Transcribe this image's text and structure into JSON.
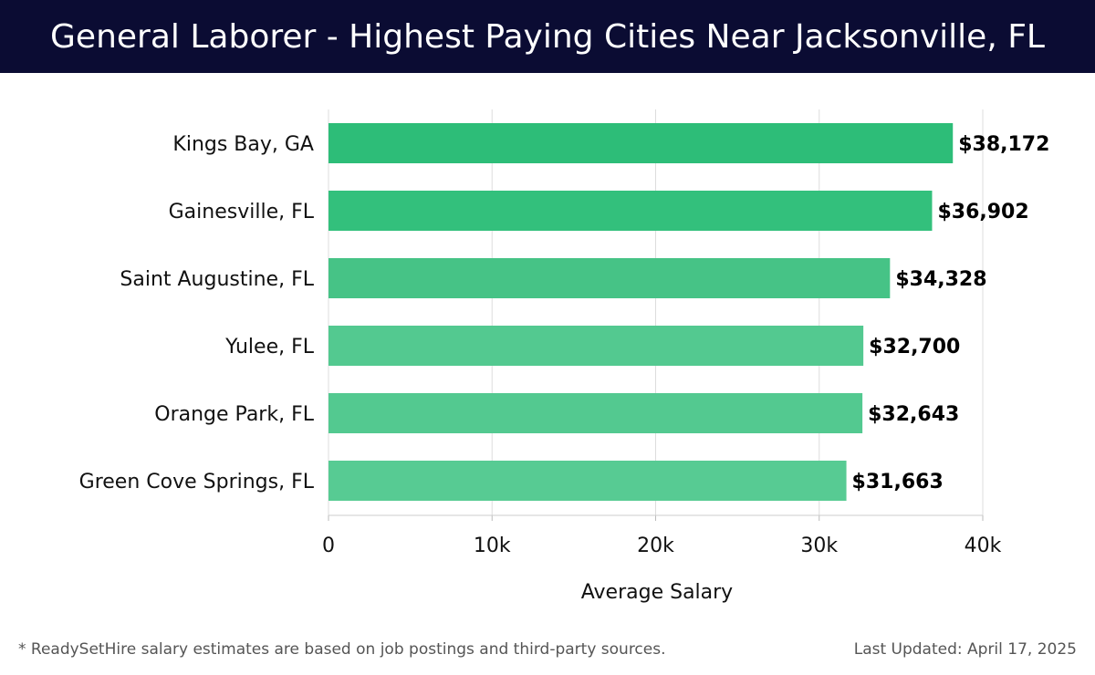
{
  "header": {
    "title": "General Laborer - Highest Paying Cities Near Jacksonville, FL"
  },
  "footer": {
    "footnote": "* ReadySetHire salary estimates are based on job postings and third-party sources.",
    "last_updated": "Last Updated: April 17, 2025"
  },
  "colors": {
    "header_bg": "#0b0c33",
    "bar_colors": [
      "#2dbd78",
      "#33c07c",
      "#46c386",
      "#53c990",
      "#53c990",
      "#57cb93"
    ],
    "grid": "#dddddd"
  },
  "chart_data": {
    "type": "bar",
    "orientation": "horizontal",
    "title": "General Laborer - Highest Paying Cities Near Jacksonville, FL",
    "xlabel": "Average Salary",
    "ylabel": "",
    "categories": [
      "Kings Bay, GA",
      "Gainesville, FL",
      "Saint Augustine, FL",
      "Yulee, FL",
      "Orange Park, FL",
      "Green Cove Springs, FL"
    ],
    "values": [
      38172,
      36902,
      34328,
      32700,
      32643,
      31663
    ],
    "value_labels": [
      "$38,172",
      "$36,902",
      "$34,328",
      "$32,700",
      "$32,643",
      "$31,663"
    ],
    "xlim": [
      0,
      40000
    ],
    "ticks": [
      0,
      10000,
      20000,
      30000,
      40000
    ],
    "tick_labels": [
      "0",
      "10k",
      "20k",
      "30k",
      "40k"
    ],
    "grid": true
  }
}
